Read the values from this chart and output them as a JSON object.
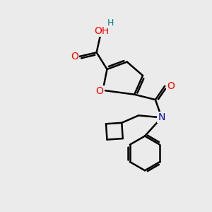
{
  "bg_color": "#ebebeb",
  "bond_color": "#000000",
  "bond_width": 1.8,
  "atom_colors": {
    "O": "#ff0000",
    "N": "#0000cc",
    "C": "#000000",
    "H": "#008080"
  },
  "font_size": 10,
  "fig_size": [
    3.0,
    3.0
  ],
  "dpi": 100
}
